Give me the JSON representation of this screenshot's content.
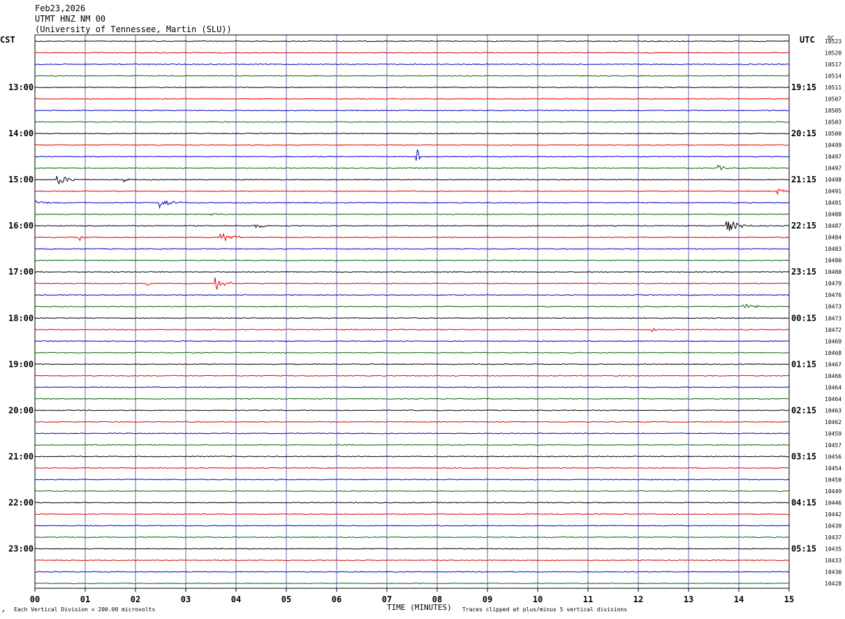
{
  "header": {
    "date": "Feb23,2026",
    "station": "UTMT HNZ NM 00",
    "institution": "(University of Tennessee, Martin (SLU))"
  },
  "left_zone_label": "CST",
  "right_zone_label": "UTC",
  "dc_label": "DC",
  "footer": {
    "scale_note": "Each Vertical Division =  200.00 microvolts",
    "xlabel": "TIME (MINUTES)",
    "clip_note": "Traces clipped at plus/minus 5 vertical divisions",
    "corner_mark": "↗"
  },
  "colors": {
    "grid_vertical": "#6a6aaa",
    "frame": "#000000",
    "trace_cycle": [
      "#000000",
      "#e00000",
      "#0000cc",
      "#006600"
    ]
  },
  "chart_data": {
    "type": "line",
    "xlim": [
      0,
      15
    ],
    "x_ticks": [
      "00",
      "01",
      "02",
      "03",
      "04",
      "05",
      "06",
      "07",
      "08",
      "09",
      "10",
      "11",
      "12",
      "13",
      "14",
      "15"
    ],
    "row_minutes": 15,
    "left_time_labels": [
      "13:00",
      "14:00",
      "15:00",
      "16:00",
      "17:00",
      "18:00",
      "19:00",
      "20:00",
      "21:00",
      "22:00",
      "23:00"
    ],
    "right_time_labels": [
      "19:15",
      "20:15",
      "21:15",
      "22:15",
      "23:15",
      "00:15",
      "01:15",
      "02:15",
      "03:15",
      "04:15",
      "05:15"
    ],
    "dc_offsets": [
      10523,
      10520,
      10517,
      10514,
      10511,
      10507,
      10505,
      10503,
      10500,
      10499,
      10497,
      10497,
      10498,
      10491,
      10491,
      10488,
      10487,
      10484,
      10483,
      10480,
      10480,
      10479,
      10476,
      10473,
      10473,
      10472,
      10469,
      10468,
      10467,
      10466,
      10464,
      10464,
      10463,
      10462,
      10459,
      10457,
      10456,
      10454,
      10450,
      10449,
      10446,
      10442,
      10439,
      10437,
      10435,
      10433,
      10430,
      10428
    ],
    "events": [
      {
        "row": 10,
        "minute": 7.6,
        "amp": 12,
        "dur": 0.05
      },
      {
        "row": 11,
        "minute": 13.6,
        "amp": 4,
        "dur": 0.3
      },
      {
        "row": 12,
        "minute": 0.45,
        "amp": 9,
        "dur": 0.4
      },
      {
        "row": 12,
        "minute": 1.8,
        "amp": 3,
        "dur": 0.2
      },
      {
        "row": 13,
        "minute": 14.8,
        "amp": 4,
        "dur": 0.3
      },
      {
        "row": 14,
        "minute": 0.0,
        "amp": 3,
        "dur": 0.6
      },
      {
        "row": 14,
        "minute": 2.5,
        "amp": 8,
        "dur": 0.4
      },
      {
        "row": 15,
        "minute": 3.5,
        "amp": 2,
        "dur": 0.5
      },
      {
        "row": 16,
        "minute": 4.4,
        "amp": 3,
        "dur": 0.5
      },
      {
        "row": 16,
        "minute": 13.75,
        "amp": 10,
        "dur": 0.5
      },
      {
        "row": 17,
        "minute": 0.9,
        "amp": 5,
        "dur": 0.05
      },
      {
        "row": 17,
        "minute": 3.7,
        "amp": 9,
        "dur": 0.4
      },
      {
        "row": 21,
        "minute": 3.6,
        "amp": 10,
        "dur": 0.3
      },
      {
        "row": 21,
        "minute": 2.25,
        "amp": 3,
        "dur": 0.05
      },
      {
        "row": 23,
        "minute": 14.1,
        "amp": 6,
        "dur": 0.3
      },
      {
        "row": 25,
        "minute": 12.3,
        "amp": 3,
        "dur": 0.15
      }
    ]
  }
}
